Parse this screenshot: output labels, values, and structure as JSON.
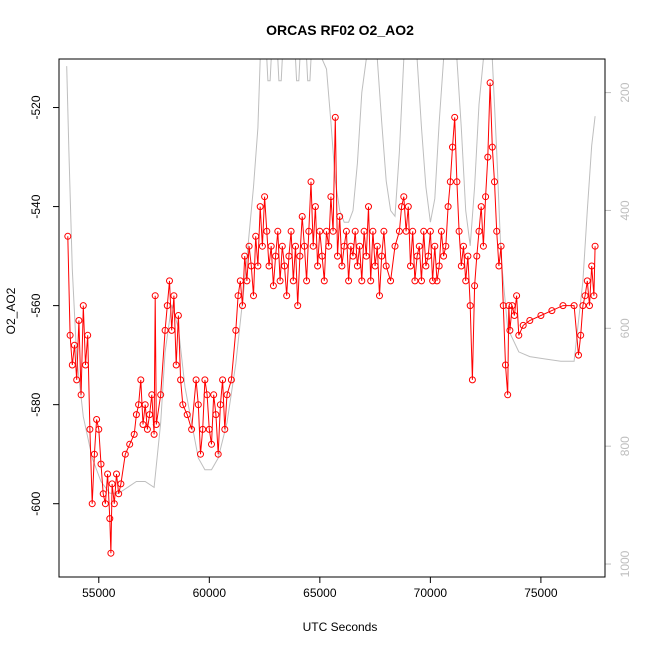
{
  "chart_data": {
    "type": "scatter",
    "title": "ORCAS RF02 O2_AO2",
    "xlabel": "UTC Seconds",
    "ylabel": "O2_AO2",
    "xlim": [
      53200,
      77900
    ],
    "ylim": [
      -614.8,
      -510.2
    ],
    "x_ticks": [
      55000,
      60000,
      65000,
      70000,
      75000
    ],
    "y_ticks": [
      -600,
      -580,
      -560,
      -540,
      -520
    ],
    "y2_ticks": [
      200,
      400,
      600,
      800,
      1000
    ],
    "y2lim": [
      1022,
      143
    ],
    "grid": false,
    "legend": "none",
    "series": [
      {
        "color": "#ff0000",
        "marker": "open-circle",
        "line": true,
        "points": [
          [
            53600,
            -546
          ],
          [
            53700,
            -566
          ],
          [
            53800,
            -572
          ],
          [
            53900,
            -568
          ],
          [
            54000,
            -575
          ],
          [
            54100,
            -563
          ],
          [
            54200,
            -578
          ],
          [
            54300,
            -560
          ],
          [
            54400,
            -572
          ],
          [
            54500,
            -566
          ],
          [
            54600,
            -585
          ],
          [
            54700,
            -600
          ],
          [
            54800,
            -590
          ],
          [
            54900,
            -583
          ],
          [
            55000,
            -585
          ],
          [
            55100,
            -592
          ],
          [
            55200,
            -598
          ],
          [
            55300,
            -600
          ],
          [
            55400,
            -594
          ],
          [
            55500,
            -603
          ],
          [
            55550,
            -610
          ],
          [
            55600,
            -596
          ],
          [
            55700,
            -600
          ],
          [
            55800,
            -594
          ],
          [
            55900,
            -598
          ],
          [
            56000,
            -596
          ],
          [
            56200,
            -590
          ],
          [
            56400,
            -588
          ],
          [
            56600,
            -586
          ],
          [
            56700,
            -582
          ],
          [
            56800,
            -580
          ],
          [
            56900,
            -575
          ],
          [
            57000,
            -584
          ],
          [
            57100,
            -580
          ],
          [
            57200,
            -585
          ],
          [
            57300,
            -582
          ],
          [
            57400,
            -578
          ],
          [
            57500,
            -586
          ],
          [
            57550,
            -558
          ],
          [
            57600,
            -584
          ],
          [
            57800,
            -578
          ],
          [
            58000,
            -565
          ],
          [
            58100,
            -560
          ],
          [
            58200,
            -555
          ],
          [
            58300,
            -565
          ],
          [
            58400,
            -558
          ],
          [
            58500,
            -572
          ],
          [
            58600,
            -562
          ],
          [
            58700,
            -575
          ],
          [
            58800,
            -580
          ],
          [
            59000,
            -582
          ],
          [
            59200,
            -585
          ],
          [
            59400,
            -575
          ],
          [
            59500,
            -580
          ],
          [
            59600,
            -590
          ],
          [
            59700,
            -585
          ],
          [
            59800,
            -575
          ],
          [
            59900,
            -578
          ],
          [
            60000,
            -585
          ],
          [
            60100,
            -588
          ],
          [
            60200,
            -578
          ],
          [
            60300,
            -582
          ],
          [
            60400,
            -590
          ],
          [
            60500,
            -580
          ],
          [
            60600,
            -575
          ],
          [
            60700,
            -585
          ],
          [
            60800,
            -578
          ],
          [
            61000,
            -575
          ],
          [
            61200,
            -565
          ],
          [
            61300,
            -558
          ],
          [
            61400,
            -555
          ],
          [
            61500,
            -560
          ],
          [
            61600,
            -550
          ],
          [
            61700,
            -555
          ],
          [
            61800,
            -548
          ],
          [
            61900,
            -552
          ],
          [
            62000,
            -558
          ],
          [
            62100,
            -546
          ],
          [
            62200,
            -552
          ],
          [
            62300,
            -540
          ],
          [
            62400,
            -548
          ],
          [
            62500,
            -538
          ],
          [
            62600,
            -545
          ],
          [
            62700,
            -552
          ],
          [
            62800,
            -548
          ],
          [
            62900,
            -556
          ],
          [
            63000,
            -550
          ],
          [
            63100,
            -545
          ],
          [
            63200,
            -555
          ],
          [
            63300,
            -548
          ],
          [
            63400,
            -552
          ],
          [
            63500,
            -558
          ],
          [
            63600,
            -550
          ],
          [
            63700,
            -545
          ],
          [
            63800,
            -555
          ],
          [
            63900,
            -548
          ],
          [
            64000,
            -560
          ],
          [
            64100,
            -550
          ],
          [
            64200,
            -542
          ],
          [
            64300,
            -548
          ],
          [
            64400,
            -555
          ],
          [
            64500,
            -545
          ],
          [
            64600,
            -535
          ],
          [
            64700,
            -548
          ],
          [
            64800,
            -540
          ],
          [
            64900,
            -552
          ],
          [
            65000,
            -545
          ],
          [
            65100,
            -550
          ],
          [
            65200,
            -555
          ],
          [
            65300,
            -545
          ],
          [
            65400,
            -548
          ],
          [
            65500,
            -538
          ],
          [
            65600,
            -545
          ],
          [
            65700,
            -522
          ],
          [
            65800,
            -550
          ],
          [
            65900,
            -542
          ],
          [
            66000,
            -552
          ],
          [
            66100,
            -548
          ],
          [
            66200,
            -545
          ],
          [
            66300,
            -555
          ],
          [
            66400,
            -548
          ],
          [
            66500,
            -550
          ],
          [
            66600,
            -545
          ],
          [
            66700,
            -552
          ],
          [
            66800,
            -548
          ],
          [
            66900,
            -555
          ],
          [
            67000,
            -545
          ],
          [
            67100,
            -550
          ],
          [
            67200,
            -540
          ],
          [
            67300,
            -555
          ],
          [
            67400,
            -545
          ],
          [
            67500,
            -552
          ],
          [
            67600,
            -548
          ],
          [
            67700,
            -558
          ],
          [
            67800,
            -550
          ],
          [
            67900,
            -545
          ],
          [
            68000,
            -552
          ],
          [
            68200,
            -555
          ],
          [
            68400,
            -548
          ],
          [
            68600,
            -545
          ],
          [
            68700,
            -540
          ],
          [
            68800,
            -538
          ],
          [
            68900,
            -545
          ],
          [
            69000,
            -540
          ],
          [
            69100,
            -552
          ],
          [
            69200,
            -545
          ],
          [
            69300,
            -555
          ],
          [
            69400,
            -550
          ],
          [
            69500,
            -548
          ],
          [
            69600,
            -555
          ],
          [
            69700,
            -545
          ],
          [
            69800,
            -552
          ],
          [
            69900,
            -550
          ],
          [
            70000,
            -545
          ],
          [
            70100,
            -555
          ],
          [
            70200,
            -548
          ],
          [
            70300,
            -555
          ],
          [
            70400,
            -552
          ],
          [
            70500,
            -545
          ],
          [
            70600,
            -550
          ],
          [
            70700,
            -548
          ],
          [
            70800,
            -540
          ],
          [
            70900,
            -535
          ],
          [
            71000,
            -528
          ],
          [
            71100,
            -522
          ],
          [
            71200,
            -535
          ],
          [
            71300,
            -545
          ],
          [
            71400,
            -552
          ],
          [
            71500,
            -548
          ],
          [
            71600,
            -555
          ],
          [
            71700,
            -550
          ],
          [
            71800,
            -560
          ],
          [
            71900,
            -575
          ],
          [
            72000,
            -556
          ],
          [
            72100,
            -550
          ],
          [
            72200,
            -545
          ],
          [
            72300,
            -540
          ],
          [
            72400,
            -548
          ],
          [
            72500,
            -538
          ],
          [
            72600,
            -530
          ],
          [
            72700,
            -515
          ],
          [
            72800,
            -528
          ],
          [
            72900,
            -535
          ],
          [
            73000,
            -545
          ],
          [
            73100,
            -552
          ],
          [
            73200,
            -548
          ],
          [
            73300,
            -560
          ],
          [
            73400,
            -572
          ],
          [
            73500,
            -578
          ],
          [
            73550,
            -560
          ],
          [
            73600,
            -565
          ],
          [
            73700,
            -560
          ],
          [
            73800,
            -562
          ],
          [
            73900,
            -558
          ],
          [
            74000,
            -566
          ],
          [
            74200,
            -564
          ],
          [
            74500,
            -563
          ],
          [
            75000,
            -562
          ],
          [
            75500,
            -561
          ],
          [
            76000,
            -560
          ],
          [
            76500,
            -560
          ],
          [
            76700,
            -570
          ],
          [
            76800,
            -566
          ],
          [
            76900,
            -560
          ],
          [
            77000,
            -558
          ],
          [
            77100,
            -555
          ],
          [
            77200,
            -560
          ],
          [
            77300,
            -552
          ],
          [
            77400,
            -558
          ],
          [
            77450,
            -548
          ]
        ]
      },
      {
        "color": "#bebebe",
        "marker": "none",
        "line": true,
        "axis": "right",
        "points": [
          [
            53550,
            155
          ],
          [
            53650,
            300
          ],
          [
            53800,
            500
          ],
          [
            54000,
            650
          ],
          [
            54300,
            750
          ],
          [
            54700,
            820
          ],
          [
            55100,
            860
          ],
          [
            55500,
            880
          ],
          [
            55900,
            880
          ],
          [
            56300,
            870
          ],
          [
            56700,
            860
          ],
          [
            57100,
            860
          ],
          [
            57500,
            870
          ],
          [
            57800,
            760
          ],
          [
            58000,
            640
          ],
          [
            58300,
            560
          ],
          [
            58600,
            600
          ],
          [
            58900,
            700
          ],
          [
            59200,
            760
          ],
          [
            59500,
            820
          ],
          [
            59800,
            840
          ],
          [
            60100,
            840
          ],
          [
            60400,
            820
          ],
          [
            60800,
            760
          ],
          [
            61200,
            660
          ],
          [
            61600,
            520
          ],
          [
            62000,
            360
          ],
          [
            62200,
            260
          ],
          [
            62300,
            143
          ],
          [
            62600,
            143
          ],
          [
            62650,
            180
          ],
          [
            62750,
            180
          ],
          [
            62800,
            143
          ],
          [
            63100,
            143
          ],
          [
            63150,
            180
          ],
          [
            63250,
            180
          ],
          [
            63300,
            143
          ],
          [
            63900,
            143
          ],
          [
            63950,
            180
          ],
          [
            64050,
            180
          ],
          [
            64100,
            143
          ],
          [
            64400,
            143
          ],
          [
            64450,
            180
          ],
          [
            64550,
            180
          ],
          [
            64600,
            143
          ],
          [
            65100,
            143
          ],
          [
            65300,
            160
          ],
          [
            65500,
            250
          ],
          [
            65700,
            350
          ],
          [
            65900,
            400
          ],
          [
            66100,
            420
          ],
          [
            66300,
            420
          ],
          [
            66500,
            400
          ],
          [
            66700,
            320
          ],
          [
            66900,
            200
          ],
          [
            67100,
            143
          ],
          [
            67600,
            143
          ],
          [
            67800,
            250
          ],
          [
            68000,
            350
          ],
          [
            68200,
            400
          ],
          [
            68400,
            410
          ],
          [
            68600,
            300
          ],
          [
            68800,
            143
          ],
          [
            69400,
            143
          ],
          [
            69600,
            260
          ],
          [
            69800,
            360
          ],
          [
            70000,
            420
          ],
          [
            70200,
            380
          ],
          [
            70400,
            250
          ],
          [
            70600,
            143
          ],
          [
            71200,
            143
          ],
          [
            71400,
            260
          ],
          [
            71600,
            400
          ],
          [
            71800,
            460
          ],
          [
            72000,
            360
          ],
          [
            72200,
            220
          ],
          [
            72400,
            143
          ],
          [
            72800,
            143
          ],
          [
            73000,
            300
          ],
          [
            73200,
            480
          ],
          [
            73500,
            600
          ],
          [
            74000,
            640
          ],
          [
            74500,
            648
          ],
          [
            75200,
            652
          ],
          [
            75900,
            656
          ],
          [
            76500,
            656
          ],
          [
            76900,
            520
          ],
          [
            77100,
            400
          ],
          [
            77300,
            290
          ],
          [
            77450,
            240
          ]
        ]
      }
    ]
  }
}
